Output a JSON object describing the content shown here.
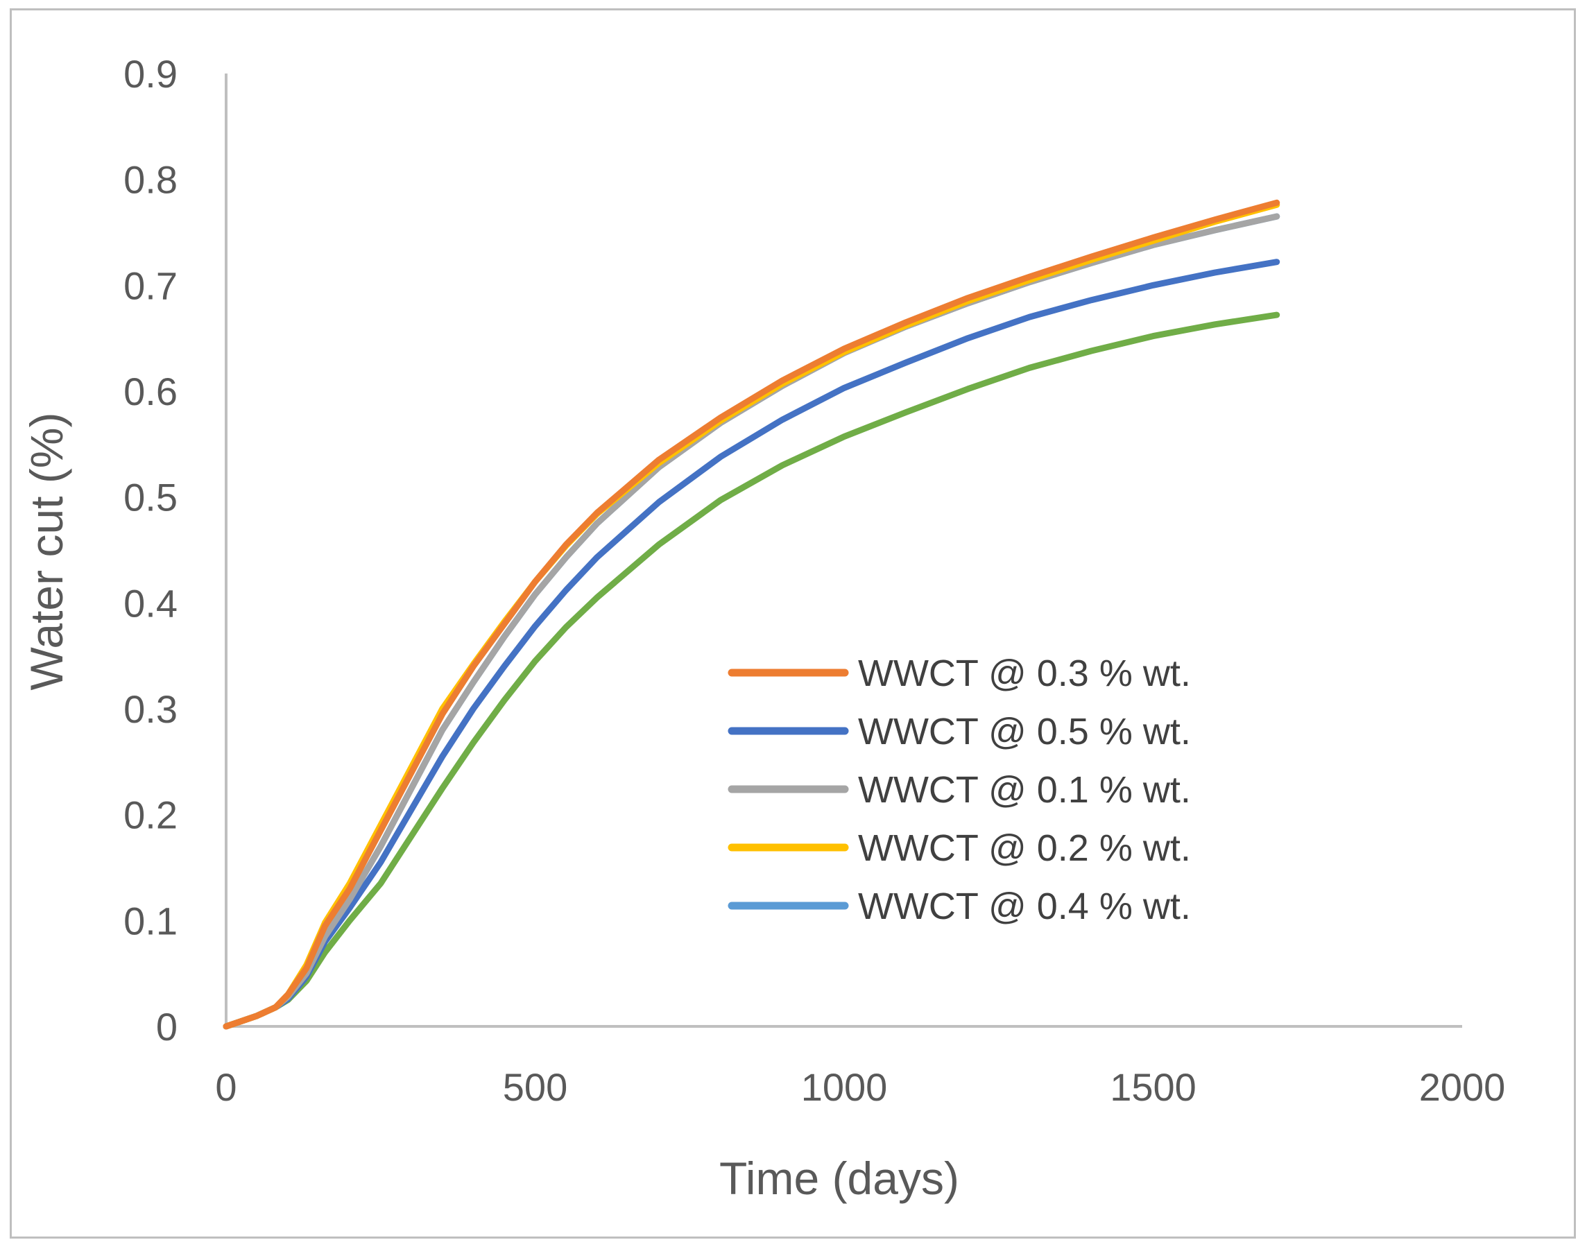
{
  "chart_data": {
    "type": "line",
    "title": "",
    "xlabel": "Time (days)",
    "ylabel": "Water cut (%)",
    "xlim": [
      0,
      2000
    ],
    "ylim": [
      0,
      0.9
    ],
    "x_ticks": [
      "0",
      "500",
      "1000",
      "1500",
      "2000"
    ],
    "y_ticks": [
      "0",
      "0.1",
      "0.2",
      "0.3",
      "0.4",
      "0.5",
      "0.6",
      "0.7",
      "0.8",
      "0.9"
    ],
    "grid": false,
    "legend_position": "center-right",
    "series": [
      {
        "name": "WWCT @ 0.3 % wt.",
        "color": "#ed7d31",
        "x": [
          0,
          50,
          80,
          100,
          130,
          160,
          200,
          250,
          300,
          350,
          400,
          450,
          500,
          550,
          600,
          700,
          800,
          900,
          1000,
          1100,
          1200,
          1300,
          1400,
          1500,
          1600,
          1700
        ],
        "y": [
          0,
          0.01,
          0.018,
          0.03,
          0.055,
          0.095,
          0.13,
          0.185,
          0.24,
          0.295,
          0.34,
          0.38,
          0.42,
          0.455,
          0.485,
          0.535,
          0.575,
          0.61,
          0.64,
          0.665,
          0.688,
          0.708,
          0.727,
          0.745,
          0.762,
          0.778
        ]
      },
      {
        "name": "WWCT @ 0.5 % wt.",
        "color": "#4472c4",
        "x": [
          0,
          50,
          80,
          100,
          130,
          160,
          200,
          250,
          300,
          350,
          400,
          450,
          500,
          550,
          600,
          700,
          800,
          900,
          1000,
          1100,
          1200,
          1300,
          1400,
          1500,
          1600,
          1700
        ],
        "y": [
          0,
          0.01,
          0.018,
          0.026,
          0.047,
          0.08,
          0.112,
          0.155,
          0.205,
          0.255,
          0.3,
          0.34,
          0.378,
          0.412,
          0.443,
          0.495,
          0.538,
          0.573,
          0.603,
          0.627,
          0.65,
          0.67,
          0.686,
          0.7,
          0.712,
          0.722
        ]
      },
      {
        "name": "WWCT @ 0.1 % wt.",
        "color": "#a5a5a5",
        "x": [
          0,
          50,
          80,
          100,
          130,
          160,
          200,
          250,
          300,
          350,
          400,
          450,
          500,
          550,
          600,
          700,
          800,
          900,
          1000,
          1100,
          1200,
          1300,
          1400,
          1500,
          1600,
          1700
        ],
        "y": [
          0,
          0.01,
          0.018,
          0.028,
          0.05,
          0.085,
          0.12,
          0.17,
          0.225,
          0.28,
          0.325,
          0.368,
          0.408,
          0.443,
          0.475,
          0.528,
          0.57,
          0.605,
          0.636,
          0.661,
          0.683,
          0.703,
          0.721,
          0.738,
          0.752,
          0.765
        ]
      },
      {
        "name": "WWCT @ 0.2 % wt.",
        "color": "#ffc000",
        "x": [
          0,
          50,
          80,
          100,
          130,
          160,
          200,
          250,
          300,
          350,
          400,
          450,
          500,
          550,
          600,
          700,
          800,
          900,
          1000,
          1100,
          1200,
          1300,
          1400,
          1500,
          1600,
          1700
        ],
        "y": [
          0,
          0.01,
          0.018,
          0.03,
          0.058,
          0.098,
          0.135,
          0.19,
          0.245,
          0.3,
          0.342,
          0.382,
          0.42,
          0.454,
          0.484,
          0.532,
          0.572,
          0.607,
          0.637,
          0.662,
          0.685,
          0.705,
          0.724,
          0.742,
          0.76,
          0.776
        ]
      },
      {
        "name": "WWCT @ 0.4 % wt.",
        "color": "#5b9bd5",
        "x": [
          0,
          50,
          80,
          100,
          130,
          160,
          200,
          250,
          300,
          350,
          400,
          450,
          500,
          550,
          600,
          700,
          800,
          900,
          1000,
          1100,
          1200,
          1300,
          1400,
          1500,
          1600,
          1700
        ],
        "y": [
          0,
          0.01,
          0.018,
          0.028,
          0.05,
          0.085,
          0.12,
          0.17,
          0.225,
          0.28,
          0.325,
          0.368,
          0.408,
          0.443,
          0.475,
          0.528,
          0.57,
          0.605,
          0.636,
          0.661,
          0.683,
          0.703,
          0.721,
          0.738,
          0.752,
          0.765
        ]
      },
      {
        "name": "",
        "color": "#70ad47",
        "x": [
          0,
          50,
          80,
          100,
          130,
          160,
          200,
          250,
          300,
          350,
          400,
          450,
          500,
          550,
          600,
          700,
          800,
          900,
          1000,
          1100,
          1200,
          1300,
          1400,
          1500,
          1600,
          1700
        ],
        "y": [
          0,
          0.01,
          0.018,
          0.025,
          0.043,
          0.07,
          0.1,
          0.135,
          0.18,
          0.225,
          0.268,
          0.308,
          0.345,
          0.377,
          0.405,
          0.455,
          0.497,
          0.53,
          0.557,
          0.58,
          0.602,
          0.622,
          0.638,
          0.652,
          0.663,
          0.672
        ]
      }
    ]
  }
}
